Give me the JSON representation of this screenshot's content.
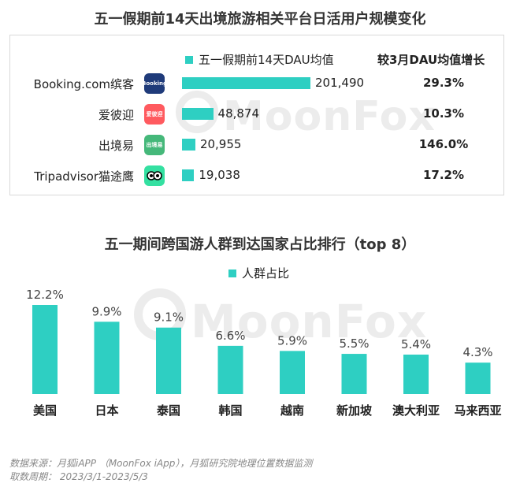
{
  "titles": {
    "top": "五一假期前14天出境旅游相关平台日活用户规模变化",
    "bottom": "五一期间跨国游人群到达国家占比排行（top 8）"
  },
  "watermark": "MoonFox",
  "colors": {
    "accent": "#2ecfc2",
    "text": "#222222",
    "muted": "#888888"
  },
  "chart_data": [
    {
      "type": "bar",
      "orientation": "horizontal",
      "title": "五一假期前14天出境旅游相关平台日活用户规模变化",
      "categories": [
        "Booking.com缤客",
        "爱彼迎",
        "出境易",
        "Tripadvisor猫途鹰"
      ],
      "series": [
        {
          "name": "五一假期前14天DAU均值",
          "values": [
            201490,
            48874,
            20955,
            19038
          ]
        }
      ],
      "value_labels": [
        "201,490",
        "48,874",
        "20,955",
        "19,038"
      ],
      "growth_header": "较3月DAU均值增长",
      "growth": [
        "29.3%",
        "10.3%",
        "146.0%",
        "17.2%"
      ],
      "icons": [
        "booking-app-icon",
        "airbnb-app-icon",
        "chujingyi-app-icon",
        "tripadvisor-app-icon"
      ],
      "icon_text": [
        "Booking",
        "爱彼迎",
        "出境易",
        ""
      ],
      "xlim": [
        0,
        201490
      ]
    },
    {
      "type": "bar",
      "title": "五一期间跨国游人群到达国家占比排行（top 8）",
      "categories": [
        "美国",
        "日本",
        "泰国",
        "韩国",
        "越南",
        "新加坡",
        "澳大利亚",
        "马来西亚"
      ],
      "series": [
        {
          "name": "人群占比",
          "values": [
            12.2,
            9.9,
            9.1,
            6.6,
            5.9,
            5.5,
            5.4,
            4.3
          ]
        }
      ],
      "value_labels": [
        "12.2%",
        "9.9%",
        "9.1%",
        "6.6%",
        "5.9%",
        "5.5%",
        "5.4%",
        "4.3%"
      ],
      "ylim": [
        0,
        12.2
      ],
      "legend": "top-center",
      "grid": false
    }
  ],
  "source": {
    "line1": "数据来源：月狐iAPP （MoonFox iApp），月狐研究院地理位置数据监测",
    "line2": "取数周期：  2023/3/1-2023/5/3"
  }
}
